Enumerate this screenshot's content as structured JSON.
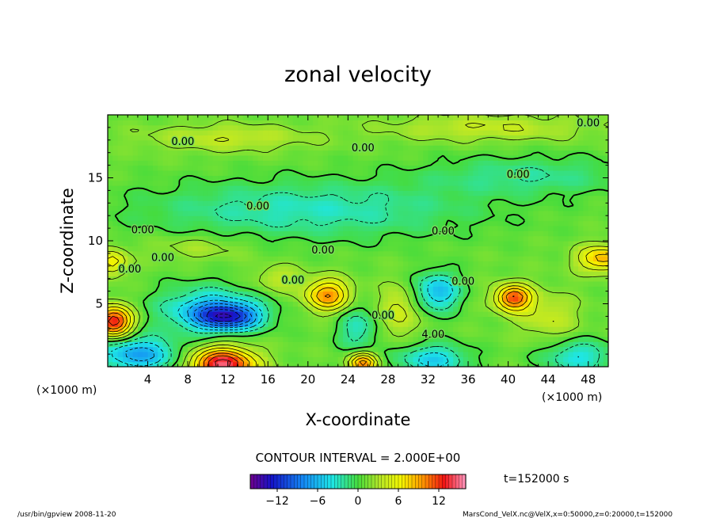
{
  "chart_data": {
    "type": "heatmap",
    "title": "zonal velocity",
    "xlabel": "X-coordinate",
    "ylabel": "Z-coordinate",
    "x_unit": "(×1000 m)",
    "y_unit": "(×1000 m)",
    "xlim": [
      0,
      50
    ],
    "ylim": [
      0,
      20
    ],
    "x_ticks": [
      4,
      8,
      12,
      16,
      20,
      24,
      28,
      32,
      36,
      40,
      44,
      48
    ],
    "y_ticks": [
      5,
      10,
      15
    ],
    "contour_interval_label": "CONTOUR INTERVAL = 2.000E+00",
    "time_label": "t=152000 s",
    "colorbar": {
      "min": -16,
      "max": 16,
      "ticks": [
        -12,
        -6,
        0,
        6,
        12
      ]
    },
    "contour_labels": [
      {
        "text": "0.00",
        "x": 7.5,
        "z": 17.6
      },
      {
        "text": "0.00",
        "x": 25.5,
        "z": 17.1
      },
      {
        "text": "0.00",
        "x": 48.0,
        "z": 19.1
      },
      {
        "text": "0.00",
        "x": 41.0,
        "z": 15.0
      },
      {
        "text": "0.00",
        "x": 15.0,
        "z": 12.5
      },
      {
        "text": "0.00",
        "x": 3.5,
        "z": 10.6
      },
      {
        "text": "0.00",
        "x": 5.5,
        "z": 8.4
      },
      {
        "text": "0.00",
        "x": 2.2,
        "z": 7.5
      },
      {
        "text": "0.00",
        "x": 21.5,
        "z": 9.0
      },
      {
        "text": "0.00",
        "x": 33.5,
        "z": 10.5
      },
      {
        "text": "0.00",
        "x": 18.5,
        "z": 6.6
      },
      {
        "text": "0.00",
        "x": 35.5,
        "z": 6.5
      },
      {
        "text": "0.00",
        "x": 27.5,
        "z": 3.8
      },
      {
        "text": "4.00",
        "x": 32.5,
        "z": 2.3
      }
    ],
    "features": [
      {
        "x": 12,
        "z": 4.0,
        "value": -11,
        "sx": 3.2,
        "sz": 1.0
      },
      {
        "x": 10,
        "z": 4.6,
        "value": -6,
        "sx": 5,
        "sz": 1.8
      },
      {
        "x": 11.5,
        "z": 0.2,
        "value": 14,
        "sx": 3.2,
        "sz": 1.3
      },
      {
        "x": 22,
        "z": 5.7,
        "value": 9,
        "sx": 2.2,
        "sz": 1.2
      },
      {
        "x": 0.6,
        "z": 3.6,
        "value": 13,
        "sx": 1.8,
        "sz": 1.2
      },
      {
        "x": 0.5,
        "z": 8.3,
        "value": 6,
        "sx": 1.5,
        "sz": 1.0
      },
      {
        "x": 40.5,
        "z": 5.5,
        "value": 11,
        "sx": 1.8,
        "sz": 1.0
      },
      {
        "x": 49.5,
        "z": 8.6,
        "value": 8,
        "sx": 2.5,
        "sz": 1.0
      },
      {
        "x": 33,
        "z": 6.0,
        "value": -7,
        "sx": 2.2,
        "sz": 1.5
      },
      {
        "x": 32.5,
        "z": 0.6,
        "value": -6,
        "sx": 3.5,
        "sz": 1.2
      },
      {
        "x": 29,
        "z": 4.4,
        "value": 4,
        "sx": 1.8,
        "sz": 2.0
      },
      {
        "x": 3,
        "z": 1.0,
        "value": -8,
        "sx": 4,
        "sz": 1.4
      },
      {
        "x": 47,
        "z": 0.8,
        "value": -5,
        "sx": 3.5,
        "sz": 1.3
      },
      {
        "x": 25,
        "z": 3.0,
        "value": -4,
        "sx": 2.0,
        "sz": 1.8
      },
      {
        "x": 25.5,
        "z": 0.3,
        "value": 10,
        "sx": 1.4,
        "sz": 0.8
      },
      {
        "x": 20,
        "z": 12.5,
        "value": -4,
        "sx": 16,
        "sz": 2.2
      },
      {
        "x": 12,
        "z": 18.2,
        "value": 3,
        "sx": 8,
        "sz": 1.0
      },
      {
        "x": 38,
        "z": 19.0,
        "value": 3,
        "sx": 10,
        "sz": 1.0
      },
      {
        "x": 42,
        "z": 15.2,
        "value": -3,
        "sx": 10,
        "sz": 1.5
      },
      {
        "x": 44,
        "z": 4.0,
        "value": 3,
        "sx": 3.0,
        "sz": 1.8
      },
      {
        "x": 17,
        "z": 7.0,
        "value": 3,
        "sx": 2.5,
        "sz": 1.0
      },
      {
        "x": 9,
        "z": 9.5,
        "value": 2,
        "sx": 5.0,
        "sz": 1.0
      }
    ]
  },
  "footer": {
    "program": "/usr/bin/gpview   2008-11-20",
    "source": "MarsCond_VelX.nc@VelX,x=0:50000,z=0:20000,t=152000"
  }
}
